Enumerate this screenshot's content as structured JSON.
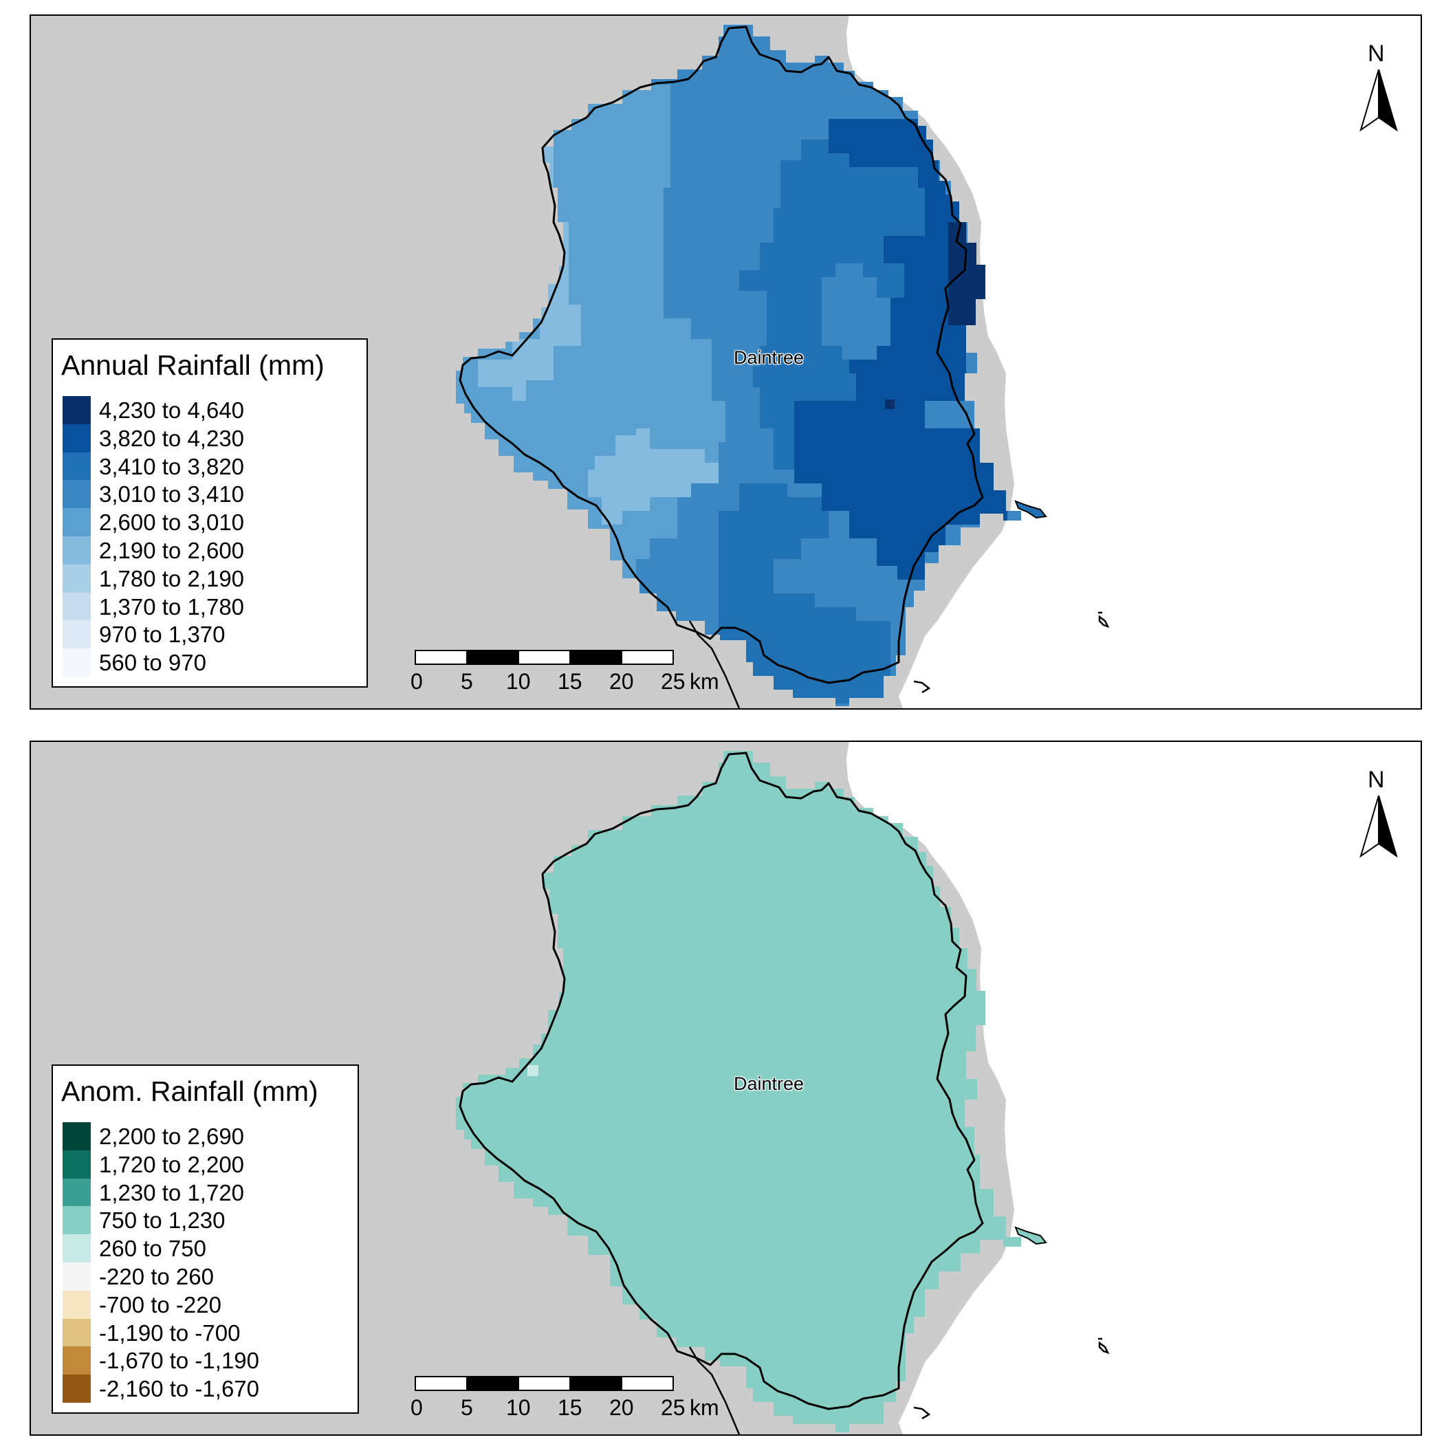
{
  "maps": [
    {
      "id": "annual",
      "legend": {
        "title": "Annual Rainfall (mm)",
        "classes": [
          {
            "label": "4,230 to 4,640",
            "color": "#08306b"
          },
          {
            "label": "3,820 to 4,230",
            "color": "#08519c"
          },
          {
            "label": "3,410 to 3,820",
            "color": "#2171b5"
          },
          {
            "label": "3,010 to 3,410",
            "color": "#3a87c4"
          },
          {
            "label": "2,600 to 3,010",
            "color": "#5aa1d2"
          },
          {
            "label": "2,190 to 2,600",
            "color": "#85bbde"
          },
          {
            "label": "1,780 to 2,190",
            "color": "#a9cfe6"
          },
          {
            "label": "1,370 to 1,780",
            "color": "#c8dcf0"
          },
          {
            "label": "970 to 1,370",
            "color": "#dde9f6"
          },
          {
            "label": "560 to 970",
            "color": "#f4f8fd"
          }
        ]
      },
      "place_label": "Daintree",
      "north_label": "N",
      "scale": {
        "ticks": [
          "0",
          "5",
          "10",
          "15",
          "20",
          "25"
        ],
        "unit": "km"
      }
    },
    {
      "id": "anomaly",
      "legend": {
        "title": "Anom. Rainfall (mm)",
        "classes": [
          {
            "label": "2,200 to 2,690",
            "color": "#01463b"
          },
          {
            "label": "1,720 to 2,200",
            "color": "#0c7062"
          },
          {
            "label": "1,230 to 1,720",
            "color": "#3a9e92"
          },
          {
            "label": "750 to 1,230",
            "color": "#87cfc4"
          },
          {
            "label": "260 to 750",
            "color": "#c9eae4"
          },
          {
            "label": "-220 to 260",
            "color": "#f5f5f5"
          },
          {
            "label": "-700 to -220",
            "color": "#f6e7c2"
          },
          {
            "label": "-1,190 to -700",
            "color": "#dfc280"
          },
          {
            "label": "-1,670 to -1,190",
            "color": "#c08a3a"
          },
          {
            "label": "-2,160 to -1,670",
            "color": "#965815"
          }
        ]
      },
      "place_label": "Daintree",
      "north_label": "N",
      "scale": {
        "ticks": [
          "0",
          "5",
          "10",
          "15",
          "20",
          "25"
        ],
        "unit": "km"
      }
    }
  ],
  "colors": {
    "land": "#cccccc",
    "sea": "#ffffff",
    "outline": "#000000"
  }
}
